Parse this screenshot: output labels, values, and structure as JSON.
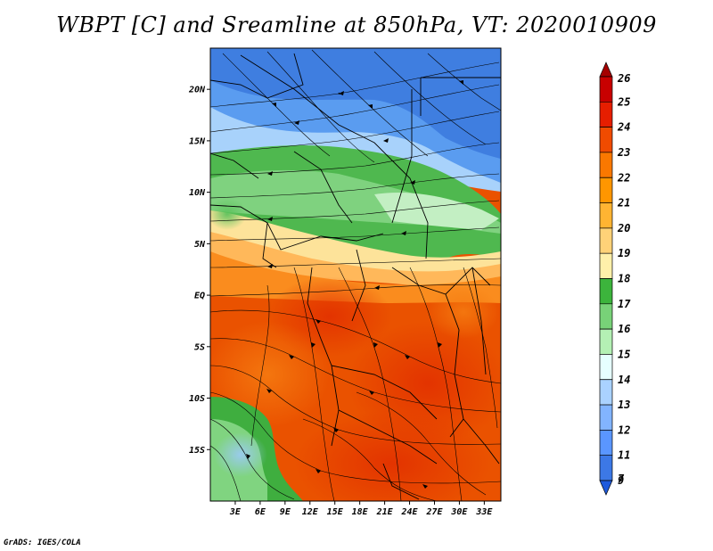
{
  "title": "WBPT [C] and Sreamline at 850hPa, VT: 2020010909",
  "credit": "GrADS: IGES/COLA",
  "lat_ticks": [
    {
      "label": "20N",
      "lat": 20
    },
    {
      "label": "15N",
      "lat": 15
    },
    {
      "label": "10N",
      "lat": 10
    },
    {
      "label": "5N",
      "lat": 5
    },
    {
      "label": "EQ",
      "lat": 0
    },
    {
      "label": "5S",
      "lat": -5
    },
    {
      "label": "10S",
      "lat": -10
    },
    {
      "label": "15S",
      "lat": -15
    }
  ],
  "lon_ticks": [
    {
      "label": "3E",
      "lon": 3
    },
    {
      "label": "6E",
      "lon": 6
    },
    {
      "label": "9E",
      "lon": 9
    },
    {
      "label": "12E",
      "lon": 12
    },
    {
      "label": "15E",
      "lon": 15
    },
    {
      "label": "18E",
      "lon": 18
    },
    {
      "label": "21E",
      "lon": 21
    },
    {
      "label": "24E",
      "lon": 24
    },
    {
      "label": "27E",
      "lon": 27
    },
    {
      "label": "30E",
      "lon": 30
    },
    {
      "label": "33E",
      "lon": 33
    }
  ],
  "colorbar": {
    "labels": [
      "26",
      "25",
      "24",
      "23",
      "22",
      "21",
      "20",
      "19",
      "18",
      "17",
      "16",
      "15",
      "14",
      "13",
      "12",
      "11",
      "9",
      "7"
    ],
    "colors": [
      "#a50000",
      "#c80000",
      "#e61e00",
      "#f04b00",
      "#fa7800",
      "#ff9600",
      "#ffb432",
      "#ffd278",
      "#fff0aa",
      "#3cb43c",
      "#78d278",
      "#b4f0b4",
      "#e6ffff",
      "#aad2ff",
      "#82b4ff",
      "#5a96ff",
      "#3c78e6",
      "#1e5adc"
    ]
  },
  "map": {
    "lat_range": [
      -20,
      24
    ],
    "lon_range": [
      0,
      35
    ]
  }
}
